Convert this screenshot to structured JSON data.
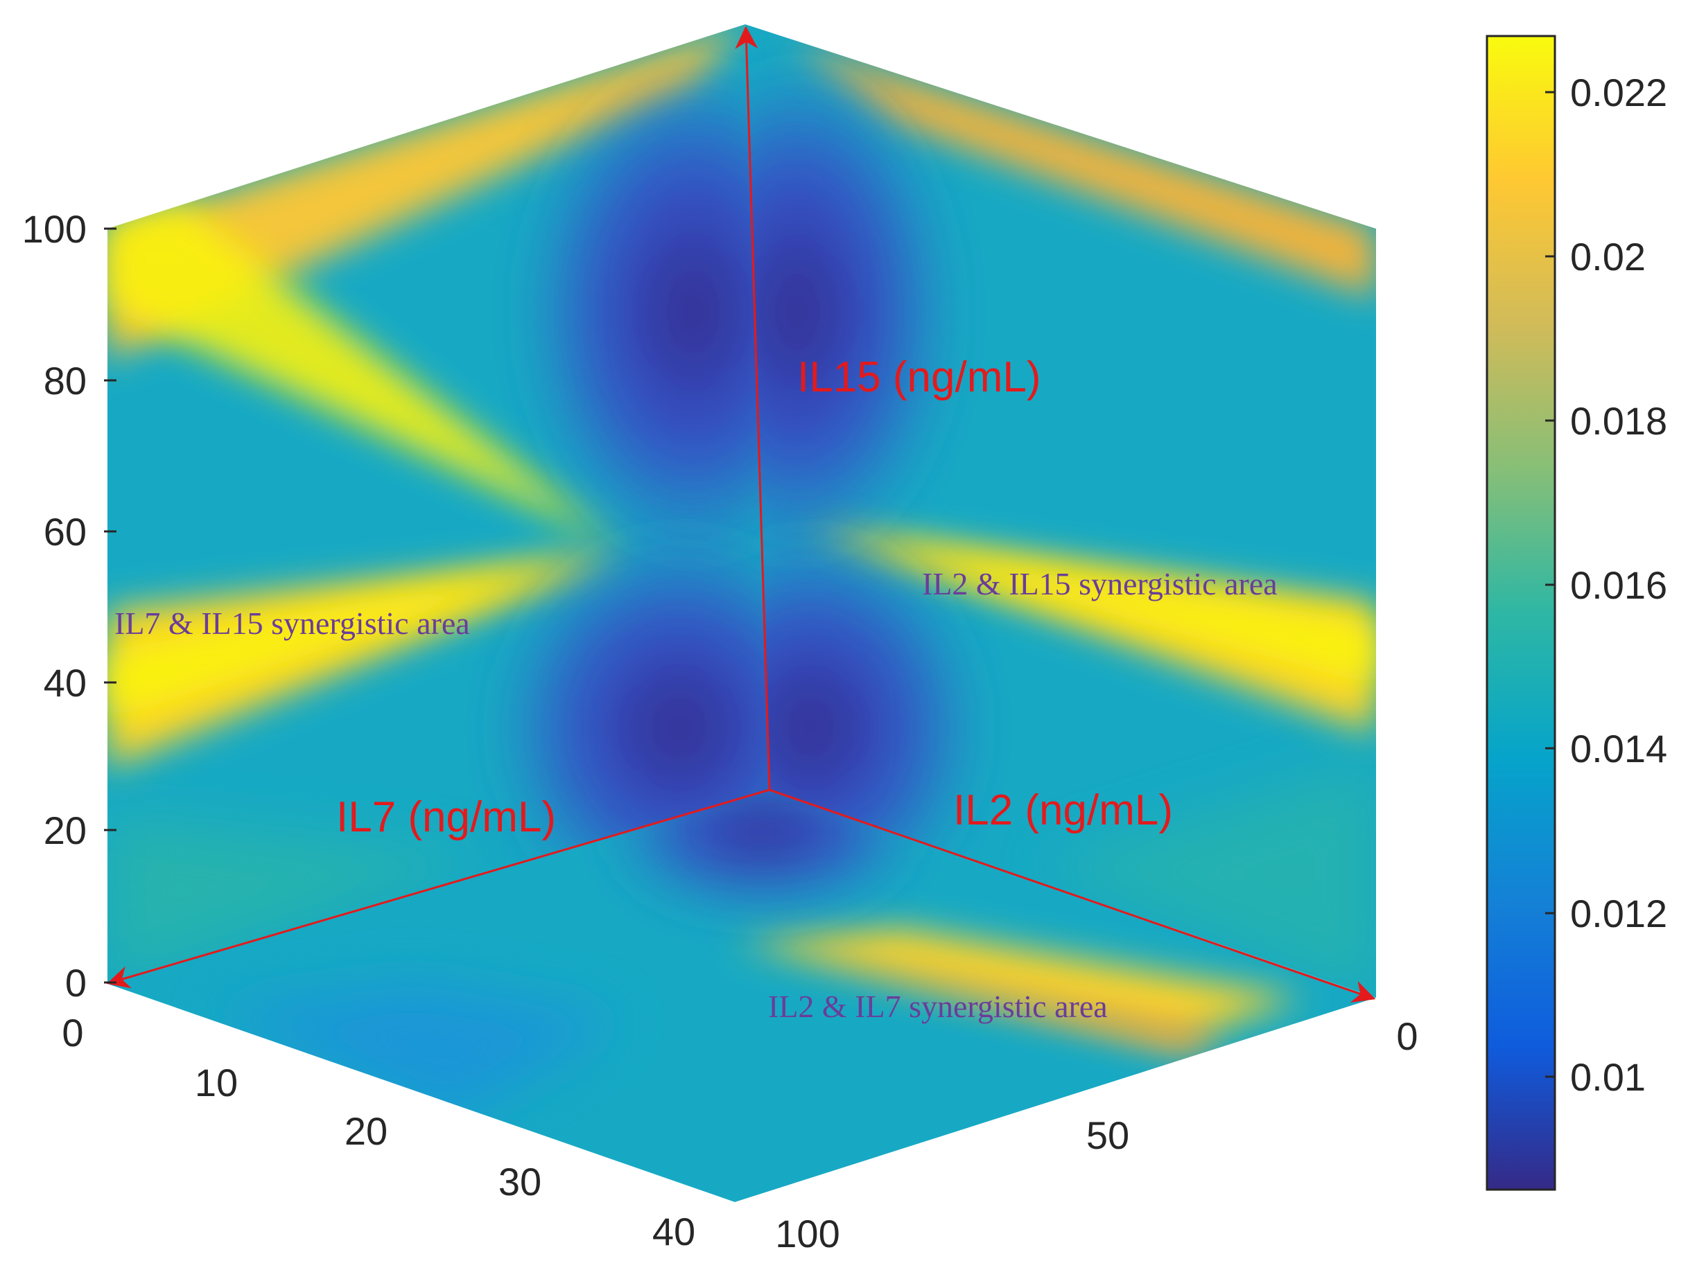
{
  "chart_data": {
    "type": "heatmap",
    "subtype": "3d-cube-surface",
    "axes": {
      "il15": {
        "label": "IL15 (ng/mL)",
        "range": [
          0,
          100
        ],
        "ticks": [
          "0",
          "20",
          "40",
          "60",
          "80",
          "100"
        ]
      },
      "il7": {
        "label": "IL7 (ng/mL)",
        "range": [
          0,
          40
        ],
        "ticks": [
          "0",
          "10",
          "20",
          "30",
          "40"
        ]
      },
      "il2": {
        "label": "IL2 (ng/mL)",
        "range": [
          0,
          100
        ],
        "ticks": [
          "0",
          "50",
          "100"
        ]
      }
    },
    "colorbar": {
      "range": [
        0.0085,
        0.0227
      ],
      "ticks": [
        "0.01",
        "0.012",
        "0.014",
        "0.016",
        "0.018",
        "0.02",
        "0.022"
      ],
      "colormap": "parula",
      "colors": [
        "#352a87",
        "#0f5cdd",
        "#1481d6",
        "#06a4ca",
        "#2eb7a4",
        "#87bf77",
        "#d1bb59",
        "#fec832",
        "#f9fb0e"
      ]
    },
    "annotations": [
      {
        "face": "left",
        "text": "IL7 & IL15 synergistic area"
      },
      {
        "face": "right",
        "text": "IL2 & IL15 synergistic area"
      },
      {
        "face": "bottom",
        "text": "IL2 & IL7 synergistic area"
      }
    ],
    "grid": false,
    "legend": "colorbar-right"
  },
  "colors": {
    "arrows": "#e31a1c",
    "annotation_text": "#6a3d9a",
    "tick_text": "#262626"
  }
}
